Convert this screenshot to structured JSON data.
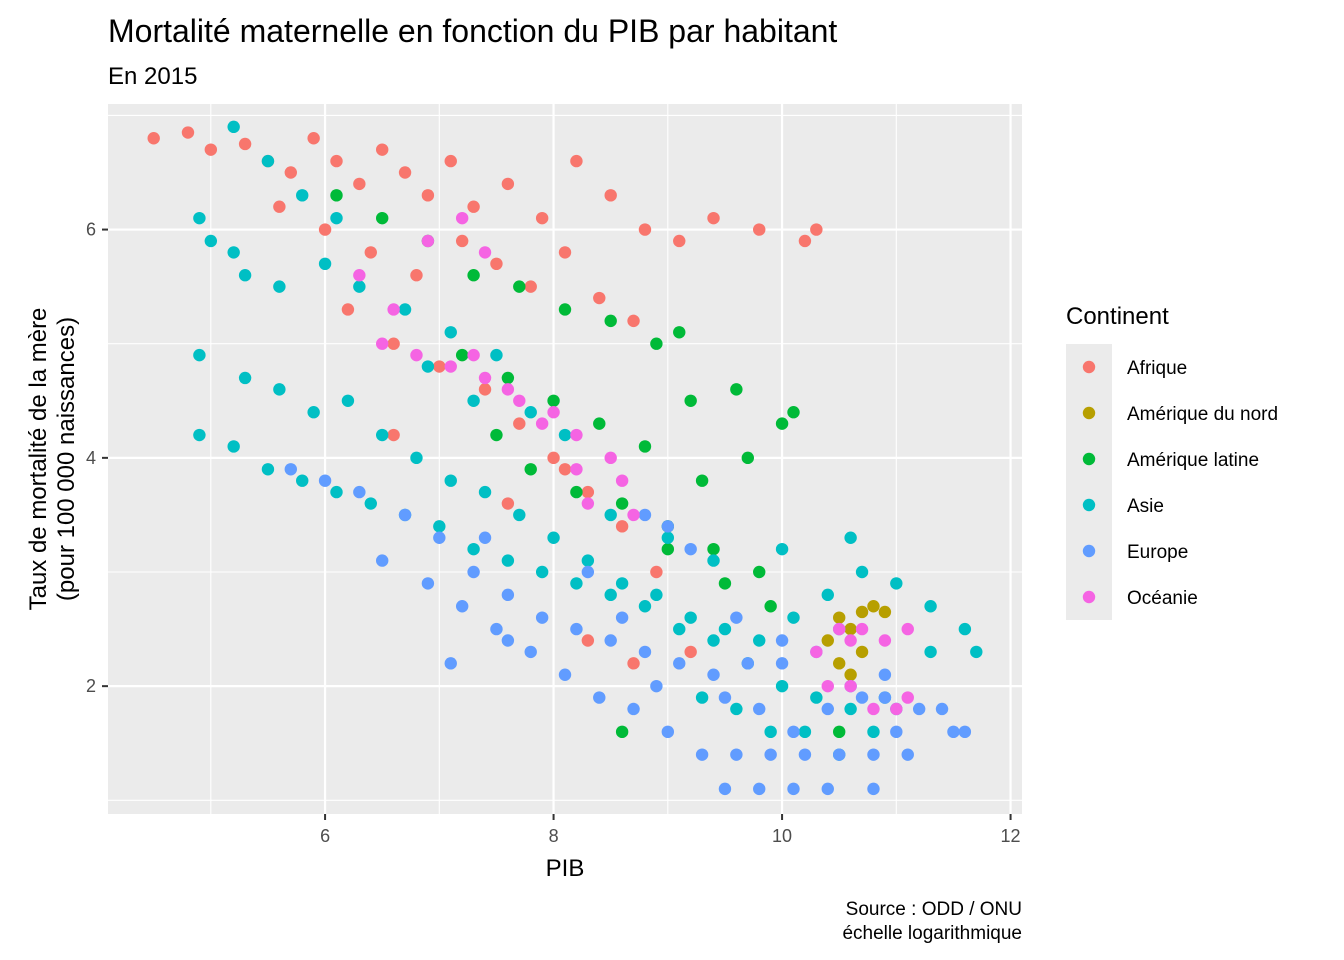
{
  "chart_data": {
    "type": "scatter",
    "title": "Mortalité maternelle en fonction du PIB par habitant",
    "subtitle": "En 2015",
    "xlabel": "PIB",
    "ylabel_line1": "Taux de mortalité de la mère",
    "ylabel_line2": "(pour 100 000 naissances)",
    "xlim": [
      4.1,
      12.1
    ],
    "ylim": [
      0.88,
      7.1
    ],
    "x_ticks": [
      6,
      8,
      10,
      12
    ],
    "y_ticks": [
      2,
      4,
      6
    ],
    "x_tick_labels": [
      "6",
      "8",
      "10",
      "12"
    ],
    "y_tick_labels": [
      "2",
      "4",
      "6"
    ],
    "grid": true,
    "legend": {
      "title": "Continent",
      "position": "right",
      "entries": [
        "Afrique",
        "Amérique du nord",
        "Amérique latine",
        "Asie",
        "Europe",
        "Océanie"
      ]
    },
    "caption_line1": "Source : ODD / ONU",
    "caption_line2": "échelle logarithmique",
    "series": [
      {
        "name": "Afrique",
        "color": "#F8766D",
        "points": [
          [
            4.5,
            6.8
          ],
          [
            4.8,
            6.85
          ],
          [
            5.0,
            6.7
          ],
          [
            5.3,
            6.75
          ],
          [
            5.5,
            6.6
          ],
          [
            5.7,
            6.5
          ],
          [
            5.9,
            6.8
          ],
          [
            6.1,
            6.6
          ],
          [
            6.3,
            6.4
          ],
          [
            6.5,
            6.7
          ],
          [
            6.7,
            6.5
          ],
          [
            6.9,
            6.3
          ],
          [
            7.1,
            6.6
          ],
          [
            7.3,
            6.2
          ],
          [
            7.6,
            6.4
          ],
          [
            7.9,
            6.1
          ],
          [
            8.2,
            6.6
          ],
          [
            8.5,
            6.3
          ],
          [
            8.8,
            6.0
          ],
          [
            9.1,
            5.9
          ],
          [
            9.4,
            6.1
          ],
          [
            9.8,
            6.0
          ],
          [
            10.2,
            5.9
          ],
          [
            10.3,
            6.0
          ],
          [
            5.6,
            6.2
          ],
          [
            6.0,
            6.0
          ],
          [
            6.4,
            5.8
          ],
          [
            6.8,
            5.6
          ],
          [
            7.2,
            5.9
          ],
          [
            7.5,
            5.7
          ],
          [
            7.8,
            5.5
          ],
          [
            8.1,
            5.8
          ],
          [
            8.4,
            5.4
          ],
          [
            8.7,
            5.2
          ],
          [
            6.2,
            5.3
          ],
          [
            6.6,
            5.0
          ],
          [
            7.0,
            4.8
          ],
          [
            7.4,
            4.6
          ],
          [
            7.7,
            4.3
          ],
          [
            8.0,
            4.0
          ],
          [
            8.3,
            3.7
          ],
          [
            8.6,
            3.4
          ],
          [
            8.9,
            3.0
          ],
          [
            8.3,
            2.4
          ],
          [
            8.7,
            2.2
          ],
          [
            9.2,
            2.3
          ],
          [
            7.6,
            3.6
          ],
          [
            8.1,
            3.9
          ],
          [
            6.6,
            4.2
          ]
        ]
      },
      {
        "name": "Amérique du nord",
        "color": "#B79F00",
        "points": [
          [
            10.4,
            2.4
          ],
          [
            10.5,
            2.6
          ],
          [
            10.6,
            2.5
          ],
          [
            10.7,
            2.65
          ],
          [
            10.8,
            2.7
          ],
          [
            10.9,
            2.65
          ],
          [
            10.5,
            2.2
          ],
          [
            10.6,
            2.1
          ],
          [
            10.7,
            2.3
          ]
        ]
      },
      {
        "name": "Amérique latine",
        "color": "#00BA38",
        "points": [
          [
            6.1,
            6.3
          ],
          [
            6.5,
            6.1
          ],
          [
            6.9,
            5.9
          ],
          [
            7.3,
            5.6
          ],
          [
            7.7,
            5.5
          ],
          [
            8.1,
            5.3
          ],
          [
            8.5,
            5.2
          ],
          [
            8.9,
            5.0
          ],
          [
            9.1,
            5.1
          ],
          [
            7.2,
            4.9
          ],
          [
            7.6,
            4.7
          ],
          [
            8.0,
            4.5
          ],
          [
            8.4,
            4.3
          ],
          [
            8.8,
            4.1
          ],
          [
            9.2,
            4.5
          ],
          [
            9.6,
            4.6
          ],
          [
            10.0,
            4.3
          ],
          [
            10.1,
            4.4
          ],
          [
            7.8,
            3.9
          ],
          [
            8.2,
            3.7
          ],
          [
            8.6,
            3.6
          ],
          [
            9.0,
            3.4
          ],
          [
            9.4,
            3.2
          ],
          [
            9.8,
            3.0
          ],
          [
            9.9,
            2.7
          ],
          [
            9.3,
            3.8
          ],
          [
            9.7,
            4.0
          ],
          [
            9.0,
            3.2
          ],
          [
            7.5,
            4.2
          ],
          [
            9.5,
            2.9
          ],
          [
            10.5,
            1.6
          ],
          [
            8.6,
            1.6
          ]
        ]
      },
      {
        "name": "Asie",
        "color": "#00BFC4",
        "points": [
          [
            5.2,
            6.9
          ],
          [
            5.5,
            6.6
          ],
          [
            5.8,
            6.3
          ],
          [
            6.1,
            6.1
          ],
          [
            5.0,
            5.9
          ],
          [
            5.3,
            5.6
          ],
          [
            5.6,
            5.5
          ],
          [
            4.9,
            6.1
          ],
          [
            5.2,
            5.8
          ],
          [
            6.0,
            5.7
          ],
          [
            6.3,
            5.5
          ],
          [
            6.7,
            5.3
          ],
          [
            7.1,
            5.1
          ],
          [
            7.5,
            4.9
          ],
          [
            4.9,
            4.9
          ],
          [
            5.3,
            4.7
          ],
          [
            5.6,
            4.6
          ],
          [
            5.9,
            4.4
          ],
          [
            6.2,
            4.5
          ],
          [
            6.5,
            4.2
          ],
          [
            6.8,
            4.0
          ],
          [
            7.1,
            3.8
          ],
          [
            7.4,
            3.7
          ],
          [
            7.7,
            3.5
          ],
          [
            8.0,
            3.3
          ],
          [
            8.3,
            3.1
          ],
          [
            8.6,
            2.9
          ],
          [
            8.9,
            2.8
          ],
          [
            9.2,
            2.6
          ],
          [
            9.5,
            2.5
          ],
          [
            9.8,
            2.4
          ],
          [
            10.1,
            2.6
          ],
          [
            10.4,
            2.8
          ],
          [
            10.7,
            3.0
          ],
          [
            11.0,
            2.9
          ],
          [
            11.3,
            2.7
          ],
          [
            11.6,
            2.5
          ],
          [
            4.9,
            4.2
          ],
          [
            5.2,
            4.1
          ],
          [
            5.5,
            3.9
          ],
          [
            5.8,
            3.8
          ],
          [
            6.1,
            3.7
          ],
          [
            6.4,
            3.6
          ],
          [
            6.7,
            3.5
          ],
          [
            7.0,
            3.4
          ],
          [
            7.3,
            3.2
          ],
          [
            7.6,
            3.1
          ],
          [
            7.9,
            3.0
          ],
          [
            8.2,
            2.9
          ],
          [
            8.5,
            2.8
          ],
          [
            8.8,
            2.7
          ],
          [
            9.1,
            2.5
          ],
          [
            9.4,
            2.4
          ],
          [
            9.7,
            2.2
          ],
          [
            10.0,
            2.0
          ],
          [
            10.3,
            1.9
          ],
          [
            10.6,
            1.8
          ],
          [
            10.9,
            1.9
          ],
          [
            9.3,
            1.9
          ],
          [
            9.6,
            1.8
          ],
          [
            9.9,
            1.6
          ],
          [
            10.2,
            1.6
          ],
          [
            10.5,
            1.4
          ],
          [
            10.8,
            1.6
          ],
          [
            11.0,
            1.8
          ],
          [
            7.8,
            4.4
          ],
          [
            8.1,
            4.2
          ],
          [
            6.9,
            4.8
          ],
          [
            7.3,
            4.5
          ],
          [
            8.5,
            3.5
          ],
          [
            9.0,
            3.3
          ],
          [
            9.4,
            3.1
          ],
          [
            10.0,
            3.2
          ],
          [
            10.6,
            3.3
          ],
          [
            11.3,
            2.3
          ],
          [
            11.7,
            2.3
          ]
        ]
      },
      {
        "name": "Europe",
        "color": "#619CFF",
        "points": [
          [
            5.7,
            3.9
          ],
          [
            6.0,
            3.8
          ],
          [
            6.3,
            3.7
          ],
          [
            6.7,
            3.5
          ],
          [
            7.0,
            3.3
          ],
          [
            7.3,
            3.0
          ],
          [
            7.6,
            2.8
          ],
          [
            7.9,
            2.6
          ],
          [
            8.2,
            2.5
          ],
          [
            8.5,
            2.4
          ],
          [
            8.8,
            2.3
          ],
          [
            9.1,
            2.2
          ],
          [
            9.4,
            2.1
          ],
          [
            9.7,
            2.2
          ],
          [
            10.0,
            2.4
          ],
          [
            10.3,
            2.3
          ],
          [
            10.6,
            2.0
          ],
          [
            10.9,
            1.9
          ],
          [
            11.2,
            1.8
          ],
          [
            11.5,
            1.6
          ],
          [
            6.5,
            3.1
          ],
          [
            6.9,
            2.9
          ],
          [
            7.2,
            2.7
          ],
          [
            7.5,
            2.5
          ],
          [
            7.8,
            2.3
          ],
          [
            8.1,
            2.1
          ],
          [
            8.4,
            1.9
          ],
          [
            8.7,
            1.8
          ],
          [
            9.0,
            1.6
          ],
          [
            9.3,
            1.4
          ],
          [
            9.6,
            1.4
          ],
          [
            9.9,
            1.4
          ],
          [
            10.2,
            1.4
          ],
          [
            10.5,
            1.4
          ],
          [
            10.8,
            1.4
          ],
          [
            11.1,
            1.4
          ],
          [
            9.5,
            1.1
          ],
          [
            9.8,
            1.1
          ],
          [
            10.1,
            1.1
          ],
          [
            10.4,
            1.1
          ],
          [
            10.8,
            1.1
          ],
          [
            11.0,
            1.6
          ],
          [
            11.4,
            1.8
          ],
          [
            11.6,
            1.6
          ],
          [
            8.9,
            2.0
          ],
          [
            9.5,
            1.9
          ],
          [
            9.8,
            1.8
          ],
          [
            10.1,
            1.6
          ],
          [
            10.4,
            1.8
          ],
          [
            10.7,
            1.9
          ],
          [
            9.2,
            3.2
          ],
          [
            9.0,
            3.4
          ],
          [
            8.8,
            3.5
          ],
          [
            9.6,
            2.6
          ],
          [
            10.0,
            2.2
          ],
          [
            8.3,
            3.0
          ],
          [
            7.4,
            3.3
          ],
          [
            7.1,
            2.2
          ],
          [
            7.6,
            2.4
          ],
          [
            8.6,
            2.6
          ],
          [
            10.5,
            2.5
          ],
          [
            10.9,
            2.1
          ]
        ]
      },
      {
        "name": "Océanie",
        "color": "#F564E3",
        "points": [
          [
            6.3,
            5.6
          ],
          [
            6.6,
            5.3
          ],
          [
            6.9,
            5.9
          ],
          [
            7.2,
            6.1
          ],
          [
            7.4,
            5.8
          ],
          [
            6.5,
            5.0
          ],
          [
            6.8,
            4.9
          ],
          [
            7.1,
            4.8
          ],
          [
            7.4,
            4.7
          ],
          [
            7.7,
            4.5
          ],
          [
            8.0,
            4.4
          ],
          [
            7.3,
            4.9
          ],
          [
            7.6,
            4.6
          ],
          [
            7.9,
            4.3
          ],
          [
            8.2,
            4.2
          ],
          [
            8.5,
            4.0
          ],
          [
            8.6,
            3.8
          ],
          [
            8.3,
            3.6
          ],
          [
            8.7,
            3.5
          ],
          [
            8.2,
            3.9
          ],
          [
            10.5,
            2.5
          ],
          [
            10.7,
            2.5
          ],
          [
            10.9,
            2.4
          ],
          [
            11.1,
            2.5
          ],
          [
            10.6,
            2.4
          ],
          [
            10.3,
            2.3
          ],
          [
            10.8,
            1.8
          ],
          [
            11.0,
            1.8
          ],
          [
            11.1,
            1.9
          ],
          [
            10.6,
            2.0
          ],
          [
            10.4,
            2.0
          ]
        ]
      }
    ]
  }
}
